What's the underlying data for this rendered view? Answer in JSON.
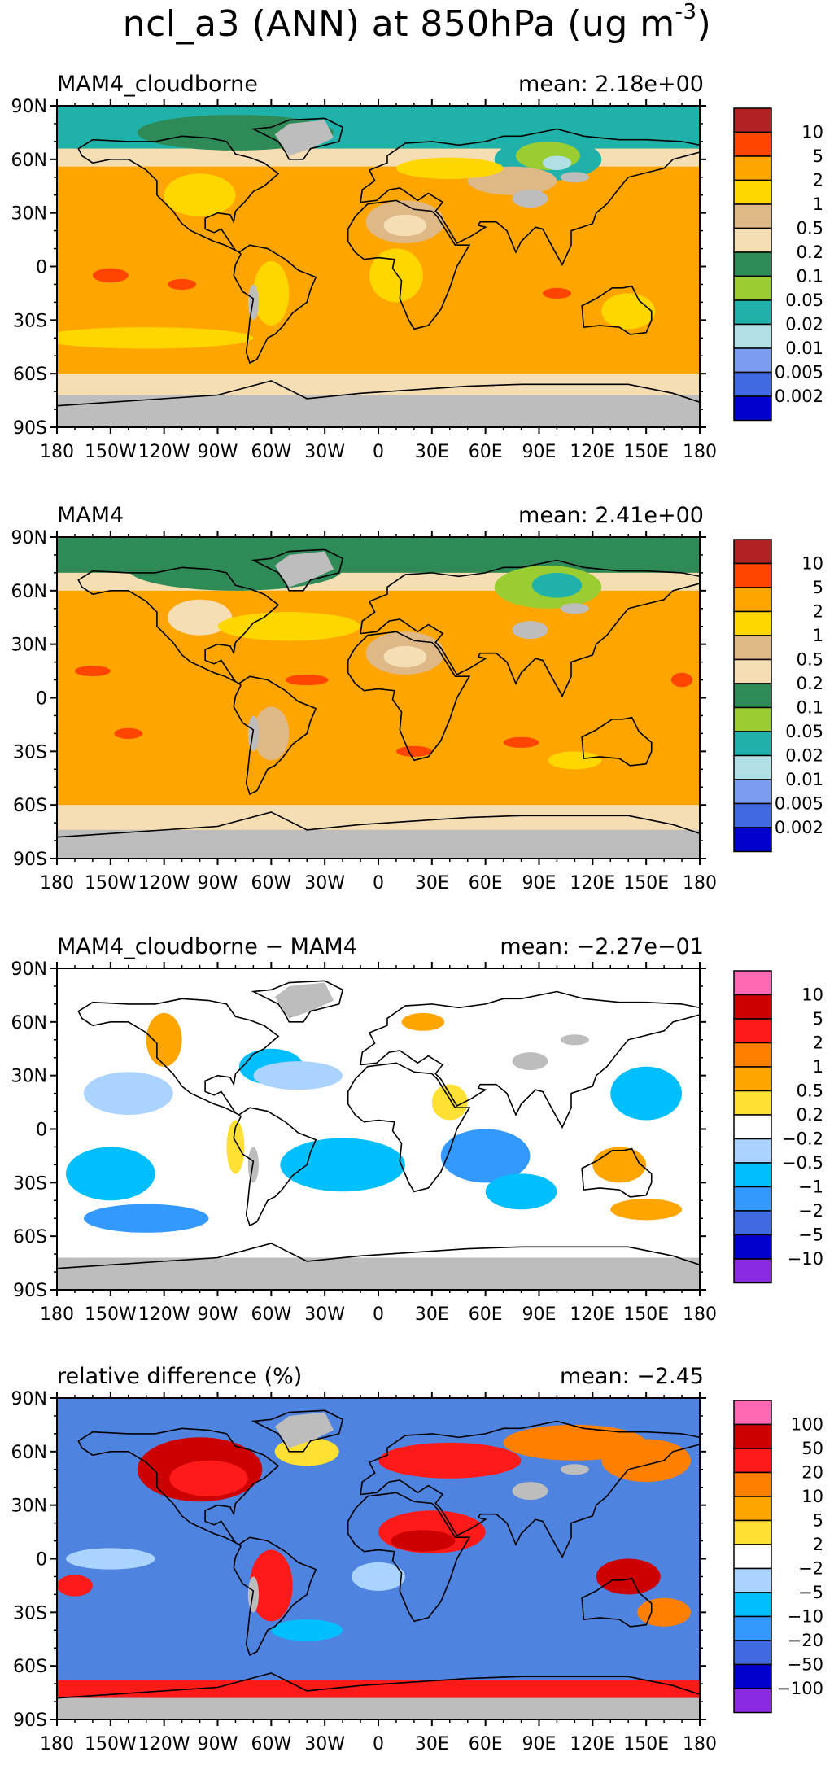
{
  "figure": {
    "title_main": "ncl_a3 (ANN) at 850hPa (ug m",
    "title_sup": "-3",
    "title_close": ")"
  },
  "axes": {
    "lat_ticks": [
      "90N",
      "60N",
      "30N",
      "0",
      "30S",
      "60S",
      "90S"
    ],
    "lon_ticks": [
      "180",
      "150W",
      "120W",
      "90W",
      "60W",
      "30W",
      "0",
      "30E",
      "60E",
      "90E",
      "120E",
      "150E",
      "180"
    ]
  },
  "colors": {
    "missing_land": "#bdbdbd",
    "coastline": "#000000"
  },
  "chart_data": [
    {
      "type": "heatmap",
      "title": "MAM4_cloudborne",
      "mean_text": "mean: 2.18e+00",
      "xlim": [
        -180,
        180
      ],
      "ylim": [
        -90,
        90
      ],
      "levels": [
        "10",
        "5",
        "2",
        "1",
        "0.5",
        "0.2",
        "0.1",
        "0.05",
        "0.02",
        "0.01",
        "0.005",
        "0.002"
      ],
      "colors": [
        "#b22222",
        "#ff4500",
        "#ffa500",
        "#ffd700",
        "#deb887",
        "#f5deb3",
        "#2e8b57",
        "#9acd32",
        "#20b2aa",
        "#b0e0e6",
        "#7b9cf0",
        "#4169e1",
        "#0000cd"
      ],
      "background": "#ffa500"
    },
    {
      "type": "heatmap",
      "title": "MAM4",
      "mean_text": "mean: 2.41e+00",
      "xlim": [
        -180,
        180
      ],
      "ylim": [
        -90,
        90
      ],
      "levels": [
        "10",
        "5",
        "2",
        "1",
        "0.5",
        "0.2",
        "0.1",
        "0.05",
        "0.02",
        "0.01",
        "0.005",
        "0.002"
      ],
      "colors": [
        "#b22222",
        "#ff4500",
        "#ffa500",
        "#ffd700",
        "#deb887",
        "#f5deb3",
        "#2e8b57",
        "#9acd32",
        "#20b2aa",
        "#b0e0e6",
        "#7b9cf0",
        "#4169e1",
        "#0000cd"
      ],
      "background": "#ffa500"
    },
    {
      "type": "heatmap",
      "title": "MAM4_cloudborne − MAM4",
      "mean_text": "mean: −2.27e−01",
      "xlim": [
        -180,
        180
      ],
      "ylim": [
        -90,
        90
      ],
      "levels": [
        "10",
        "5",
        "2",
        "1",
        "0.5",
        "0.2",
        "−0.2",
        "−0.5",
        "−1",
        "−2",
        "−5",
        "−10"
      ],
      "colors": [
        "#ff69b4",
        "#cc0000",
        "#ff1a1a",
        "#ff7f00",
        "#ffa500",
        "#ffe033",
        "#ffffff",
        "#aad4ff",
        "#00bfff",
        "#3399ff",
        "#4169e1",
        "#0000cd",
        "#8a2be2"
      ],
      "background": "#ffffff"
    },
    {
      "type": "heatmap",
      "title": "relative difference (%)",
      "mean_text": "mean: −2.45",
      "xlim": [
        -180,
        180
      ],
      "ylim": [
        -90,
        90
      ],
      "levels": [
        "100",
        "50",
        "20",
        "10",
        "5",
        "2",
        "−2",
        "−5",
        "−10",
        "−20",
        "−50",
        "−100"
      ],
      "colors": [
        "#ff69b4",
        "#cc0000",
        "#ff1a1a",
        "#ff7f00",
        "#ffa500",
        "#ffe033",
        "#ffffff",
        "#aad4ff",
        "#00bfff",
        "#3399ff",
        "#4169e1",
        "#0000cd",
        "#8a2be2"
      ],
      "background": "#4f83e0"
    }
  ]
}
